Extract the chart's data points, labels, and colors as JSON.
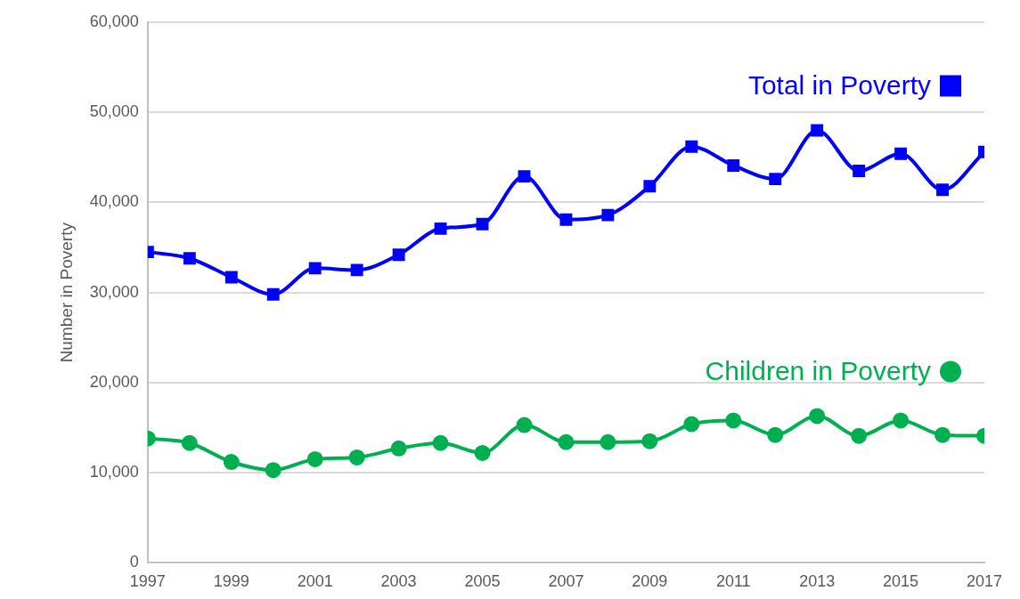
{
  "chart_data": {
    "type": "line",
    "ylabel": "Number in Poverty",
    "x": [
      1997,
      1998,
      1999,
      2000,
      2001,
      2002,
      2003,
      2004,
      2005,
      2006,
      2007,
      2008,
      2009,
      2010,
      2011,
      2012,
      2013,
      2014,
      2015,
      2016,
      2017
    ],
    "series": [
      {
        "name": "Total in Poverty",
        "color": "#0000ff",
        "marker": "square",
        "values": [
          34500,
          33800,
          31700,
          29800,
          32700,
          32500,
          34200,
          37100,
          37600,
          42900,
          38100,
          38600,
          41800,
          46200,
          44100,
          42600,
          48000,
          43500,
          45400,
          41400,
          45600
        ]
      },
      {
        "name": "Children in Poverty",
        "color": "#00b050",
        "marker": "circle",
        "values": [
          13800,
          13300,
          11200,
          10300,
          11500,
          11700,
          12700,
          13300,
          12200,
          15300,
          13400,
          13400,
          13500,
          15400,
          15800,
          14200,
          16300,
          14100,
          15800,
          14200,
          14100
        ]
      }
    ],
    "xlim": [
      1997,
      2017
    ],
    "xticks": [
      1997,
      1999,
      2001,
      2003,
      2005,
      2007,
      2009,
      2011,
      2013,
      2015,
      2017
    ],
    "ylim": [
      0,
      60000
    ],
    "yticks": [
      0,
      {
        "value": 10000,
        "label": "10,000"
      },
      {
        "value": 20000,
        "label": "20,000"
      },
      {
        "value": 30000,
        "label": "30,000"
      },
      {
        "value": 40000,
        "label": "40,000"
      },
      {
        "value": 50000,
        "label": "50,000"
      },
      {
        "value": 60000,
        "label": "60,000"
      }
    ],
    "grid": "y",
    "legend": "top right"
  }
}
